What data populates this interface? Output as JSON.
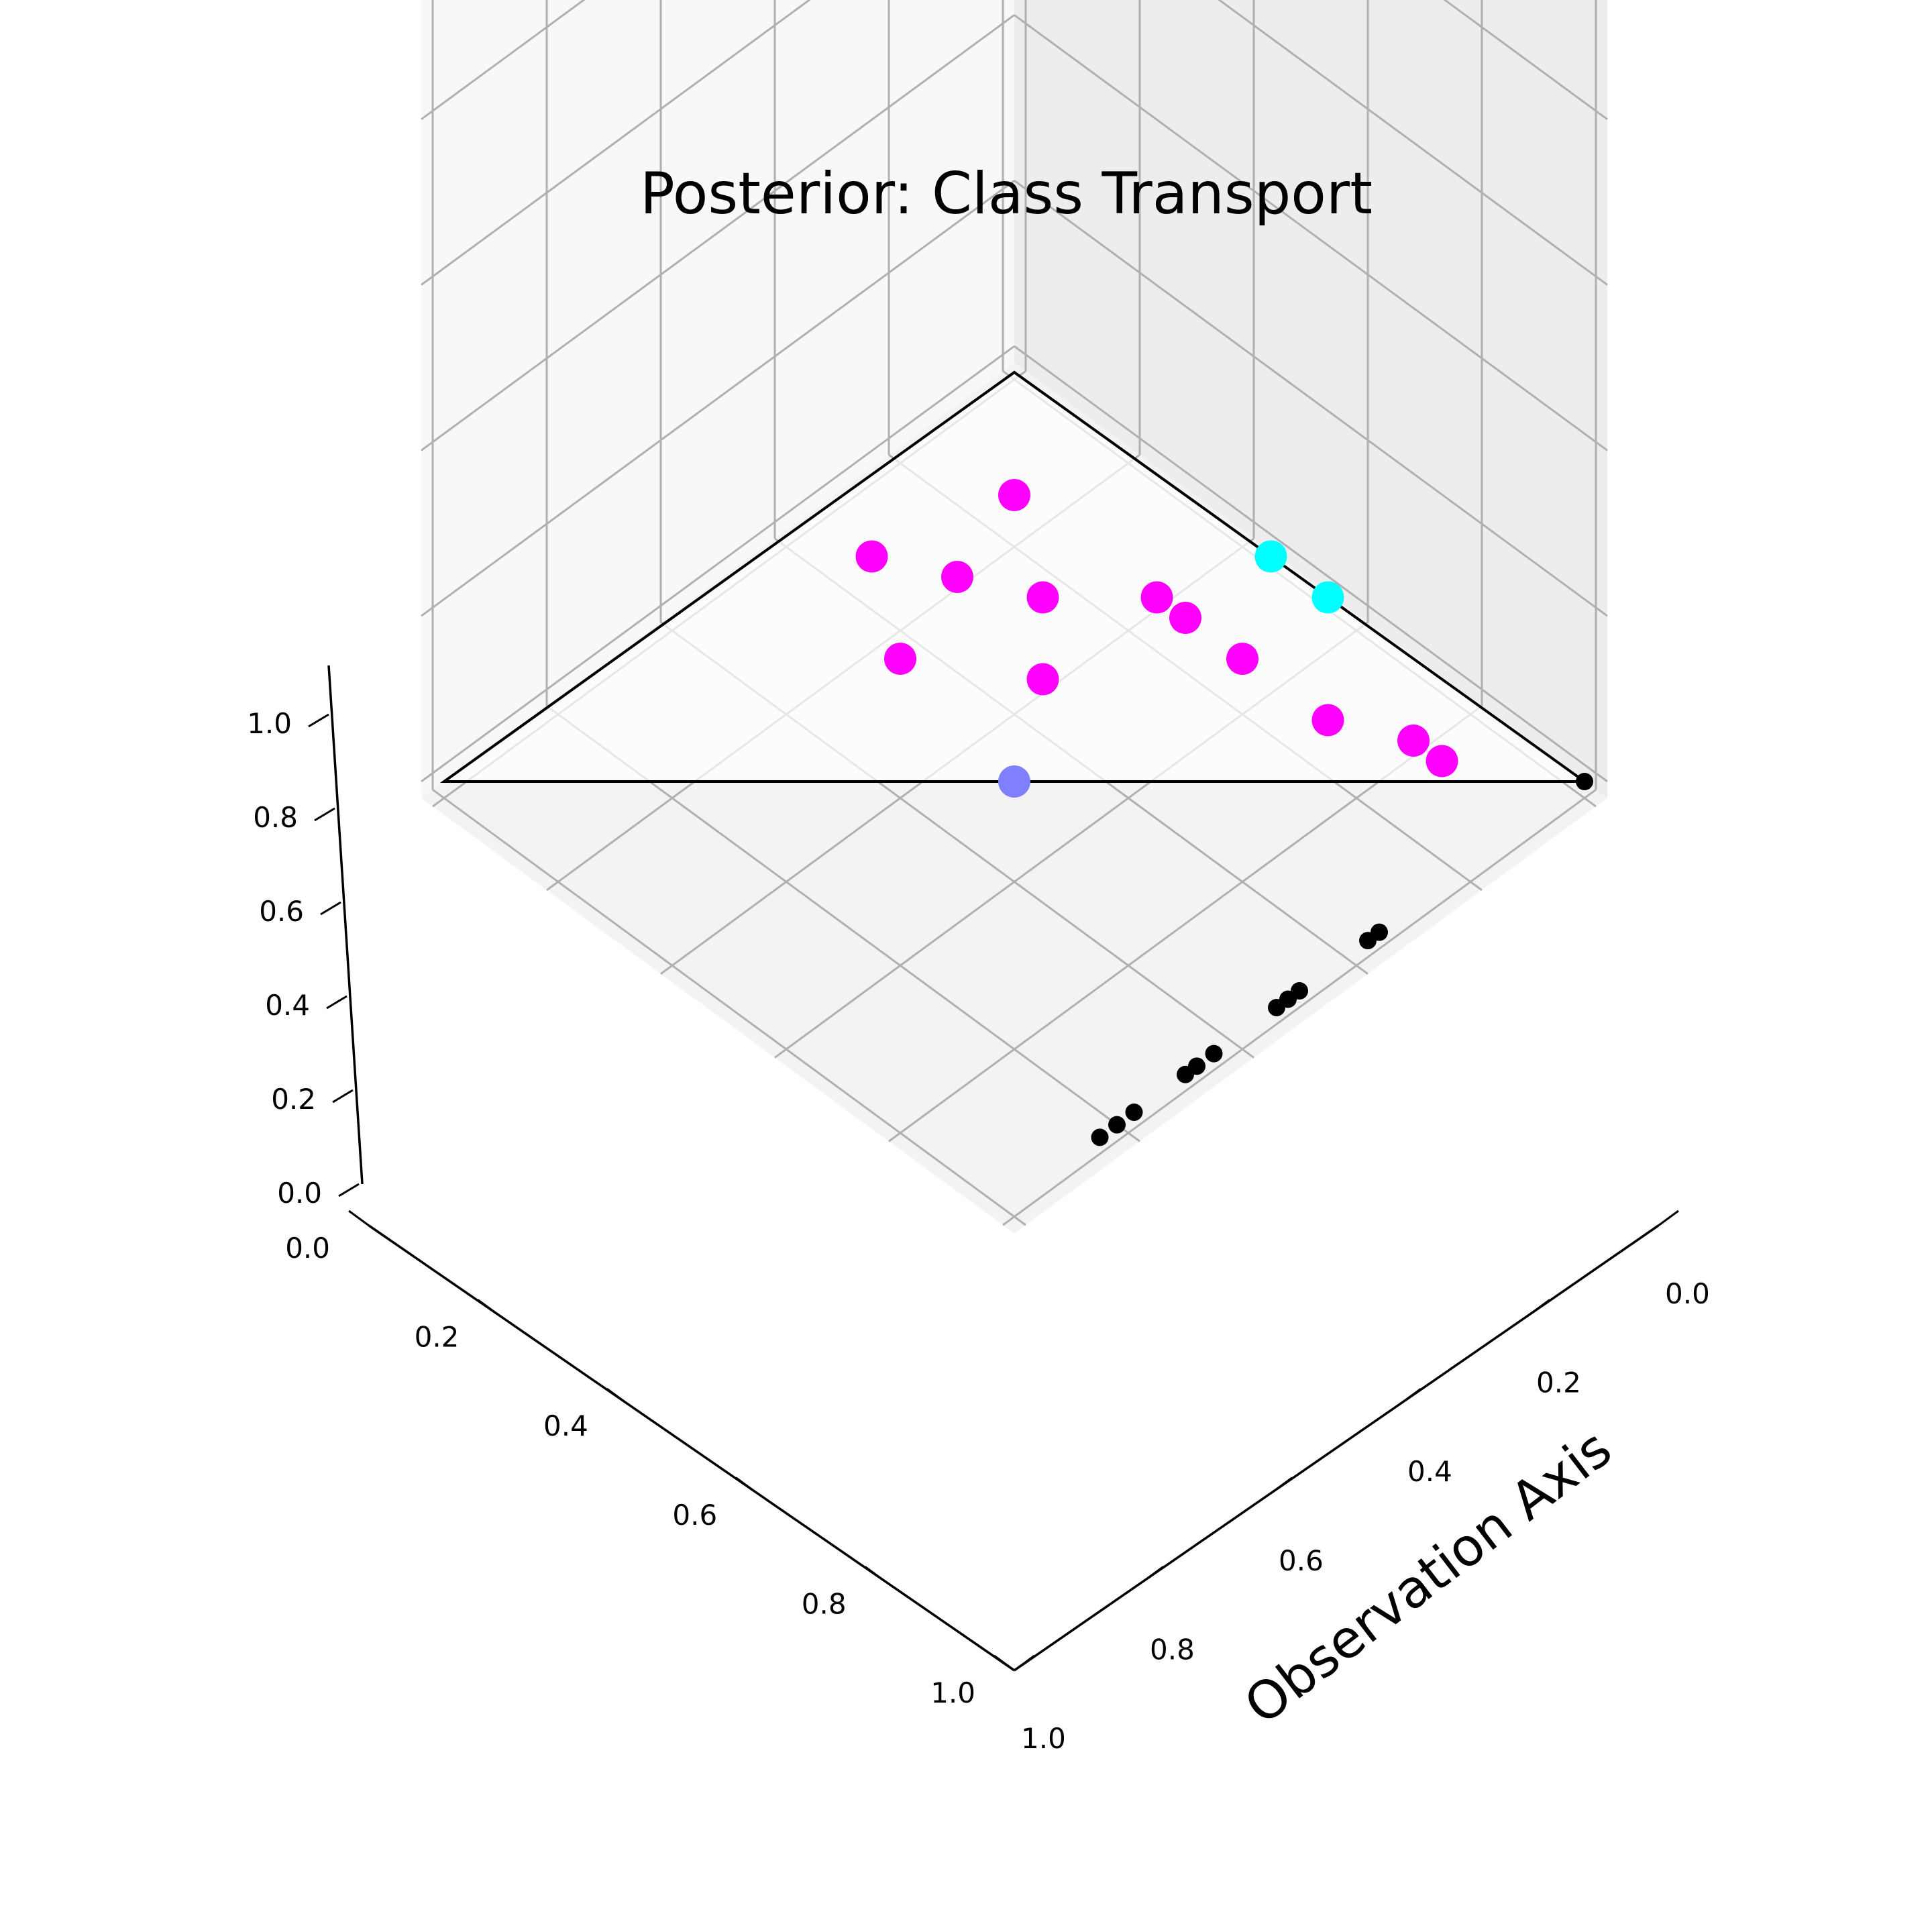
{
  "chart_data": {
    "type": "scatter",
    "projection": "3d",
    "title": "Posterior: Class Transport",
    "xlabel": "",
    "ylabel": "Observation Axis",
    "zlabel": "",
    "xlim": [
      0,
      1
    ],
    "ylim": [
      0,
      1
    ],
    "zlim": [
      0,
      1
    ],
    "grid": true,
    "x_ticks": [
      "0.0",
      "0.2",
      "0.4",
      "0.6",
      "0.8",
      "1.0"
    ],
    "y_ticks": [
      "0.0",
      "0.2",
      "0.4",
      "0.6",
      "0.8",
      "1.0"
    ],
    "z_ticks": [
      "0.0",
      "0.2",
      "0.4",
      "0.6",
      "0.8",
      "1.0"
    ],
    "simplex_vertices": [
      [
        1,
        0,
        0
      ],
      [
        0,
        1,
        0
      ],
      [
        0,
        0,
        1
      ]
    ],
    "series": [
      {
        "color": "#ff00ff",
        "points": [
          [
            0.15,
            0.15,
            0.7
          ],
          [
            0.35,
            0.1,
            0.55
          ],
          [
            0.3,
            0.2,
            0.5
          ],
          [
            0.25,
            0.3,
            0.45
          ],
          [
            0.15,
            0.4,
            0.45
          ],
          [
            0.15,
            0.45,
            0.4
          ],
          [
            0.15,
            0.55,
            0.3
          ],
          [
            0.45,
            0.25,
            0.3
          ],
          [
            0.35,
            0.4,
            0.25
          ],
          [
            0.15,
            0.7,
            0.15
          ],
          [
            0.1,
            0.8,
            0.1
          ],
          [
            0.1,
            0.85,
            0.05
          ]
        ]
      },
      {
        "color": "#00ffff",
        "points": [
          [
            0.0,
            0.45,
            0.55
          ],
          [
            0.0,
            0.55,
            0.45
          ]
        ]
      },
      {
        "color": "#8080ff",
        "points": [
          [
            0.5,
            0.5,
            0.0
          ]
        ]
      },
      {
        "color": "#000000",
        "points": [
          [
            0.0,
            1.0,
            0.0
          ],
          [
            0.0,
            0.15,
            0.0
          ],
          [
            0.0,
            0.18,
            0.0
          ],
          [
            0.0,
            0.21,
            0.0
          ],
          [
            0.0,
            0.3,
            0.0
          ],
          [
            0.0,
            0.32,
            0.0
          ],
          [
            0.0,
            0.35,
            0.0
          ],
          [
            0.0,
            0.46,
            0.0
          ],
          [
            0.0,
            0.48,
            0.0
          ],
          [
            0.0,
            0.5,
            0.0
          ],
          [
            0.0,
            0.62,
            0.0
          ],
          [
            0.0,
            0.64,
            0.0
          ]
        ]
      }
    ]
  }
}
